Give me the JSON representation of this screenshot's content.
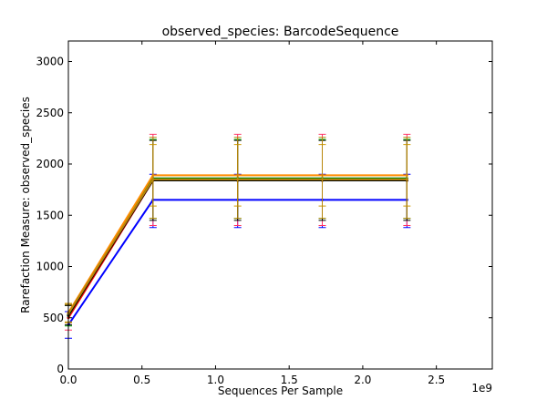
{
  "chart_data": {
    "type": "line",
    "title": "observed_species: BarcodeSequence",
    "xlabel": "Sequences Per Sample",
    "ylabel": "Rarefaction Measure: observed_species",
    "x_offset_label": "1e9",
    "xlim": [
      0,
      2.88
    ],
    "ylim": [
      0,
      3200
    ],
    "xticks": [
      0.0,
      0.5,
      1.0,
      1.5,
      2.0,
      2.5
    ],
    "xtick_labels": [
      "0.0",
      "0.5",
      "1.0",
      "1.5",
      "2.0",
      "2.5"
    ],
    "yticks": [
      0,
      500,
      1000,
      1500,
      2000,
      2500,
      3000
    ],
    "ytick_labels": [
      "0",
      "500",
      "1000",
      "1500",
      "2000",
      "2500",
      "3000"
    ],
    "grid": false,
    "x": [
      0.0,
      0.575,
      1.15,
      1.725,
      2.3
    ],
    "series": [
      {
        "color": "#0000ff",
        "values": [
          430,
          1650,
          1650,
          1650,
          1650
        ],
        "err_low": [
          300,
          1380,
          1380,
          1380,
          1380
        ],
        "err_high": [
          560,
          1900,
          1900,
          1900,
          1900
        ],
        "err_color": "#0000ff"
      },
      {
        "color": "#ff0000",
        "values": [
          500,
          1840,
          1840,
          1840,
          1840
        ],
        "err_low": [
          380,
          1400,
          1400,
          1400,
          1400
        ],
        "err_high": [
          620,
          2290,
          2290,
          2290,
          2290
        ],
        "err_color": "#ff3366"
      },
      {
        "color": "#008000",
        "values": [
          520,
          1860,
          1860,
          1860,
          1860
        ],
        "err_low": [
          420,
          1470,
          1470,
          1470,
          1470
        ],
        "err_high": [
          620,
          2240,
          2240,
          2240,
          2240
        ],
        "err_color": "#00aa00"
      },
      {
        "color": "#000000",
        "values": [
          525,
          1840,
          1840,
          1840,
          1840
        ],
        "err_low": [
          430,
          1450,
          1450,
          1450,
          1450
        ],
        "err_high": [
          620,
          2230,
          2230,
          2230,
          2230
        ],
        "err_color": "#000000"
      },
      {
        "color": "#ff8c00",
        "values": [
          550,
          1890,
          1890,
          1890,
          1890
        ],
        "err_low": [
          460,
          1590,
          1590,
          1590,
          1590
        ],
        "err_high": [
          640,
          2190,
          2190,
          2190,
          2190
        ],
        "err_color": "#cc9900"
      },
      {
        "color": "#b8860b",
        "values": [
          540,
          1850,
          1850,
          1850,
          1850
        ],
        "err_low": [
          450,
          1470,
          1470,
          1470,
          1470
        ],
        "err_high": [
          630,
          2260,
          2260,
          2260,
          2260
        ],
        "err_color": "#b8860b"
      }
    ]
  }
}
